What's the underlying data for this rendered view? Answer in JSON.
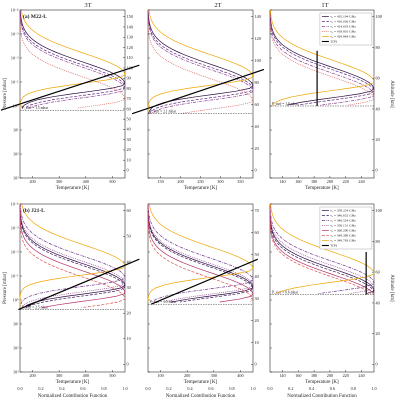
{
  "figure": {
    "column_titles": [
      "3T",
      "2T",
      "1T"
    ],
    "ylabel_pressure": "Pressure [mbar]",
    "ylabel_altitude": "Altitude [km]",
    "xlabel_temperature": "Temperature [K]",
    "xlabel_contribution": "Normalized Contribution Function",
    "colors": {
      "tp": "#000000",
      "purple_dark": "#2a0a3f",
      "purple": "#5b2a86",
      "magenta": "#8b3a8f",
      "red": "#d9534f",
      "orange": "#f0a500"
    }
  },
  "chart_data": [
    {
      "type": "line",
      "panel_label": "(a) M22-L",
      "row": 0,
      "column_titles": [
        "3T",
        "2T",
        "1T"
      ],
      "pressure_axis": {
        "scale": "log",
        "range_mbar": [
          0.0001,
          1000.0
        ],
        "tick_labels": [
          "10⁻⁴",
          "10⁻³",
          "10⁻²",
          "10⁻¹",
          "10⁰",
          "10¹",
          "10²",
          "10³"
        ]
      },
      "contribution_axis": {
        "range": [
          0.0,
          1.0
        ],
        "tick_labels": [
          "0.0",
          "0.2",
          "0.4",
          "0.6",
          "0.8",
          "1.0"
        ]
      },
      "subplots": [
        {
          "column": "3T",
          "temperature_ticks": [
            "200",
            "300",
            "400",
            "500"
          ],
          "altitude_ticks": [
            "0",
            "10",
            "20",
            "30",
            "40",
            "50",
            "60",
            "70",
            "80",
            "90",
            "100",
            "110",
            "120",
            "130",
            "140",
            "150"
          ],
          "surface_annotation": "P_surf = 1.5 mbar"
        },
        {
          "column": "2T",
          "temperature_ticks": [
            "150",
            "200",
            "250",
            "300",
            "350"
          ],
          "altitude_ticks": [
            "0",
            "20",
            "40",
            "60",
            "80",
            "100",
            "120",
            "140"
          ],
          "surface_annotation": "P_surf = 2.1 mbar"
        },
        {
          "column": "1T",
          "temperature_ticks": [
            "140",
            "160",
            "180",
            "200",
            "220",
            "240"
          ],
          "altitude_ticks": [
            "0",
            "20",
            "40",
            "60",
            "80",
            "100"
          ],
          "surface_annotation": "P_surf = 1.0 mbar"
        }
      ],
      "series": [
        {
          "name": "ν₀ = 435.194 GHz",
          "style": "solid",
          "color": "#2a0a3f",
          "peak_contribution_pressure_mbar": [
            0.12,
            0.15,
            0.2
          ]
        },
        {
          "name": "ν₀ = 416.026 GHz",
          "style": "dashed",
          "color": "#5b2a86",
          "peak_contribution_pressure_mbar": [
            0.16,
            0.2,
            0.25
          ]
        },
        {
          "name": "ν₀ = 414.019 GHz",
          "style": "dashdot",
          "color": "#8b3a8f",
          "peak_contribution_pressure_mbar": [
            0.2,
            0.25,
            0.35
          ]
        },
        {
          "name": "ν₀ = 418.810 GHz",
          "style": "dotted",
          "color": "#d9534f",
          "peak_contribution_pressure_mbar": [
            0.5,
            0.6,
            0.5
          ]
        },
        {
          "name": "ν₀ = 429.864 GHz",
          "style": "solid",
          "color": "#f0a500",
          "peak_contribution_pressure_mbar": [
            0.05,
            0.06,
            0.1
          ]
        },
        {
          "name": "T(P)",
          "style": "solid",
          "color": "#000000",
          "temperature_K": [
            [
              125,
              560
            ],
            [
              110,
              380
            ],
            [
              185,
              185
            ]
          ],
          "pressure_mbar": [
            [
              1.5,
              0.02
            ],
            [
              2.1,
              0.03
            ],
            [
              1.0,
              0.005
            ]
          ]
        }
      ]
    },
    {
      "type": "line",
      "panel_label": "(b) J21-L",
      "row": 1,
      "column_titles": [
        "3T",
        "2T",
        "1T"
      ],
      "pressure_axis": {
        "scale": "log",
        "range_mbar": [
          0.0001,
          1000.0
        ],
        "tick_labels": [
          "10⁻⁴",
          "10⁻³",
          "10⁻²",
          "10⁻¹",
          "10⁰",
          "10¹",
          "10²",
          "10³"
        ]
      },
      "contribution_axis": {
        "range": [
          0.0,
          1.0
        ],
        "tick_labels": [
          "0.0",
          "0.2",
          "0.4",
          "0.6",
          "0.8",
          "1.0"
        ]
      },
      "subplots": [
        {
          "column": "3T",
          "temperature_ticks": [
            "200",
            "300",
            "400",
            "500"
          ],
          "altitude_ticks": [
            "0",
            "10",
            "20",
            "30",
            "40",
            "50",
            "60"
          ],
          "surface_annotation": "P_surf = 2.5 mbar"
        },
        {
          "column": "2T",
          "temperature_ticks": [
            "100",
            "200",
            "300",
            "400"
          ],
          "altitude_ticks": [
            "0",
            "10",
            "20",
            "30",
            "40",
            "50",
            "60",
            "70"
          ],
          "surface_annotation": "P_surf = 1.5 mbar"
        },
        {
          "column": "1T",
          "temperature_ticks": [
            "140",
            "160",
            "180",
            "200",
            "220",
            "240"
          ],
          "altitude_ticks": [
            "0",
            "20",
            "40",
            "60",
            "80",
            "100"
          ],
          "surface_annotation": "P_surf = 0.6 mbar"
        }
      ],
      "series": [
        {
          "name": "ν₀ = 358.224 GHz",
          "style": "solid",
          "color": "#2a0a3f",
          "peak_contribution_pressure_mbar": [
            0.25,
            0.3,
            0.4
          ]
        },
        {
          "name": "ν₀ = 346.652 GHz",
          "style": "dashed",
          "color": "#3b1a5a",
          "peak_contribution_pressure_mbar": [
            0.3,
            0.35,
            0.5
          ]
        },
        {
          "name": "ν₀ = 346.524 GHz",
          "style": "dashdot",
          "color": "#6a2c8a",
          "peak_contribution_pressure_mbar": [
            0.12,
            0.15,
            0.2
          ]
        },
        {
          "name": "ν₀ = 358.151 GHz",
          "style": "dotted",
          "color": "#8b3a8f",
          "peak_contribution_pressure_mbar": [
            0.2,
            0.25,
            0.3
          ]
        },
        {
          "name": "ν₀ = 360.290 GHz",
          "style": "solid",
          "color": "#b0306a",
          "peak_contribution_pressure_mbar": [
            0.5,
            0.6,
            0.7
          ]
        },
        {
          "name": "ν₀ = 349.399 GHz",
          "style": "dashed",
          "color": "#d9534f",
          "peak_contribution_pressure_mbar": [
            0.9,
            1.0,
            0.9
          ]
        },
        {
          "name": "ν₀ = 349.783 GHz",
          "style": "solid",
          "color": "#f0a500",
          "peak_contribution_pressure_mbar": [
            0.04,
            0.05,
            0.08
          ]
        },
        {
          "name": "T(P)",
          "style": "solid",
          "color": "#000000",
          "temperature_K": [
            [
              180,
              560
            ],
            [
              95,
              430
            ],
            [
              235,
              235
            ]
          ],
          "pressure_mbar": [
            [
              2.5,
              0.02
            ],
            [
              1.5,
              0.02
            ],
            [
              0.6,
              0.01
            ]
          ]
        }
      ]
    }
  ]
}
